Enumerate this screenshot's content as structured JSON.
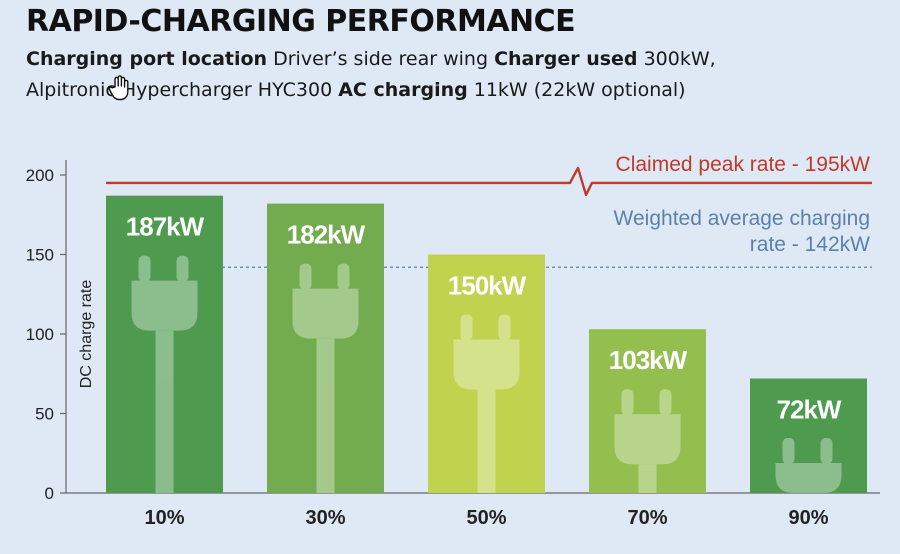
{
  "header": {
    "title": "RAPID-CHARGING PERFORMANCE",
    "port_label": "Charging port location",
    "port_value": "Driver’s side rear wing",
    "charger_label": "Charger used",
    "charger_value_1": "300kW,",
    "charger_value_2": "Alpitronic Hypercharger HYC300",
    "ac_label": "AC charging",
    "ac_value": "11kW (22kW optional)"
  },
  "chart_data": {
    "type": "bar",
    "categories": [
      "10%",
      "30%",
      "50%",
      "70%",
      "90%"
    ],
    "values": [
      187,
      182,
      150,
      103,
      72
    ],
    "data_labels": [
      "187kW",
      "182kW",
      "150kW",
      "103kW",
      "72kW"
    ],
    "bar_colors": [
      "#4e9a4f",
      "#73ac4e",
      "#bfd34f",
      "#94bf4f",
      "#4e9a4f"
    ],
    "ylabel": "DC charge rate",
    "xlabel": "",
    "ylim": [
      0,
      210
    ],
    "yticks": [
      0,
      50,
      100,
      150,
      200
    ],
    "grid": false,
    "reference_lines": [
      {
        "value": 195,
        "label": "Claimed peak rate - 195kW",
        "style": "solid",
        "color": "#c0392b"
      },
      {
        "value": 142,
        "label_lines": [
          "Weighted average charging",
          "rate - 142kW"
        ],
        "style": "dashed",
        "color": "#5a82aa"
      }
    ],
    "icon": "plug-icon"
  }
}
